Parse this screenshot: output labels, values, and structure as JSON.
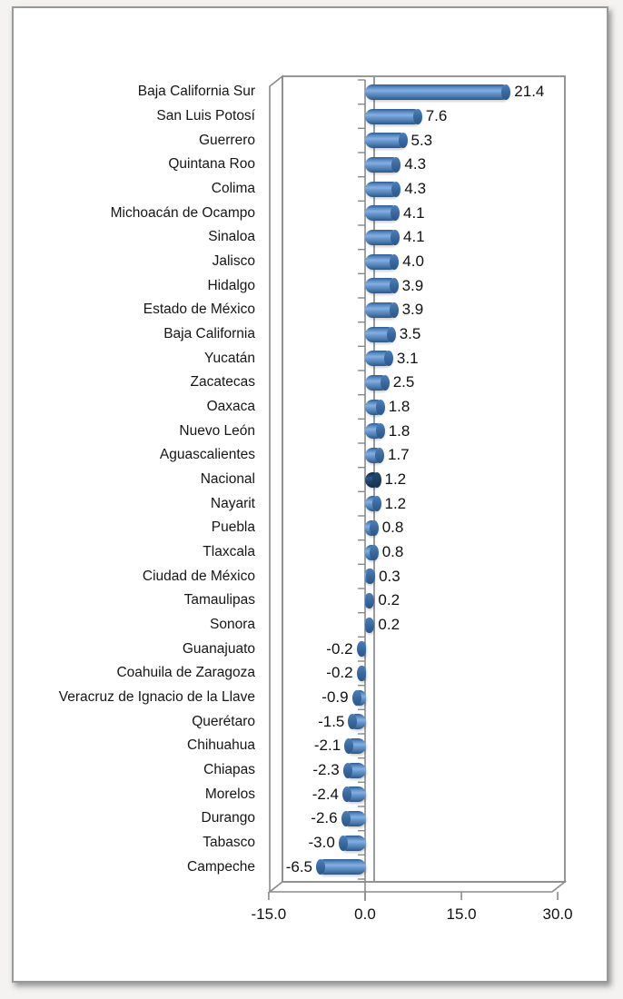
{
  "page": {
    "background_color": "#ffffff",
    "card_border_color": "#98999b",
    "title": ""
  },
  "chart_data": {
    "type": "bar",
    "orientation": "horizontal",
    "style": "3d-cylinder",
    "title": "",
    "xlabel": "",
    "ylabel": "",
    "grid": "zero-line-only",
    "legend": "none",
    "xlim": [
      -15.0,
      30.0
    ],
    "x_ticks": [
      -15.0,
      0.0,
      15.0,
      30.0
    ],
    "x_tick_labels": [
      "-15.0",
      "0.0",
      "15.0",
      "30.0"
    ],
    "categories": [
      "Baja California Sur",
      "San Luis Potosí",
      "Guerrero",
      "Quintana Roo",
      "Colima",
      "Michoacán de Ocampo",
      "Sinaloa",
      "Jalisco",
      "Hidalgo",
      "Estado de México",
      "Baja California",
      "Yucatán",
      "Zacatecas",
      "Oaxaca",
      "Nuevo León",
      "Aguascalientes",
      "Nacional",
      "Nayarit",
      "Puebla",
      "Tlaxcala",
      "Ciudad de México",
      "Tamaulipas",
      "Sonora",
      "Guanajuato",
      "Coahuila de Zaragoza",
      "Veracruz de Ignacio de la Llave",
      "Querétaro",
      "Chihuahua",
      "Chiapas",
      "Morelos",
      "Durango",
      "Tabasco",
      "Campeche"
    ],
    "values": [
      21.4,
      7.6,
      5.3,
      4.3,
      4.3,
      4.1,
      4.1,
      4.0,
      3.9,
      3.9,
      3.5,
      3.1,
      2.5,
      1.8,
      1.8,
      1.7,
      1.2,
      1.2,
      0.8,
      0.8,
      0.3,
      0.2,
      0.2,
      -0.2,
      -0.2,
      -0.9,
      -1.5,
      -2.1,
      -2.3,
      -2.4,
      -2.6,
      -3.0,
      -6.5
    ],
    "data_labels": [
      "21.4",
      "7.6",
      "5.3",
      "4.3",
      "4.3",
      "4.1",
      "4.1",
      "4.0",
      "3.9",
      "3.9",
      "3.5",
      "3.1",
      "2.5",
      "1.8",
      "1.8",
      "1.7",
      "1.2",
      "1.2",
      "0.8",
      "0.8",
      "0.3",
      "0.2",
      "0.2",
      "-0.2",
      "-0.2",
      "-0.9",
      "-1.5",
      "-2.1",
      "-2.3",
      "-2.4",
      "-2.6",
      "-3.0",
      "-6.5"
    ],
    "highlight_category": "Nacional",
    "highlight_index": 16,
    "bar_color": "#4f81bd",
    "highlight_color": "#1f3864",
    "frame_color": "#8a8b8d",
    "zero_line_color": "#9b9b9b",
    "text_color": "#161616"
  }
}
